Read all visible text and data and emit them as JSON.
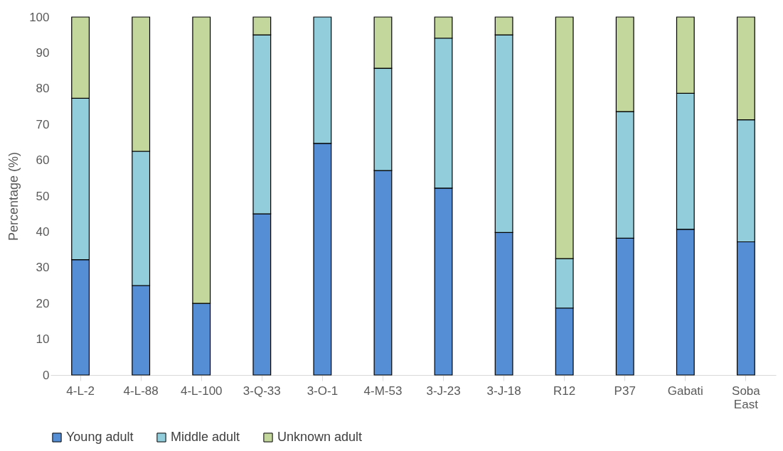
{
  "chart_data": {
    "type": "bar",
    "stacked": true,
    "ylabel": "Percentage (%)",
    "categories": [
      "4-L-2",
      "4-L-88",
      "4-L-100",
      "3-Q-33",
      "3-O-1",
      "4-M-53",
      "3-J-23",
      "3-J-18",
      "R12",
      "P37",
      "Gabati",
      "Soba East"
    ],
    "series": [
      {
        "name": "Young adult",
        "color": "#558ed5",
        "values": [
          32.2,
          25,
          20,
          45,
          64.7,
          57.1,
          52.2,
          39.8,
          18.7,
          38.2,
          40.7,
          37.2
        ]
      },
      {
        "name": "Middle adult",
        "color": "#92cddc",
        "values": [
          45.1,
          37.5,
          null,
          50,
          35.3,
          28.6,
          41.9,
          55.2,
          13.8,
          35.4,
          38,
          34.1
        ]
      },
      {
        "name": "Unknown adult",
        "color": "#c3d69b",
        "values": [
          22.7,
          37.5,
          80,
          5,
          null,
          14.3,
          5.9,
          5,
          67.5,
          26.4,
          21.3,
          28.7
        ]
      }
    ],
    "ylim": [
      0,
      100
    ],
    "yticks": [
      0,
      10,
      20,
      30,
      40,
      50,
      60,
      70,
      80,
      90,
      100
    ],
    "grid": false,
    "legend": "bottom"
  }
}
